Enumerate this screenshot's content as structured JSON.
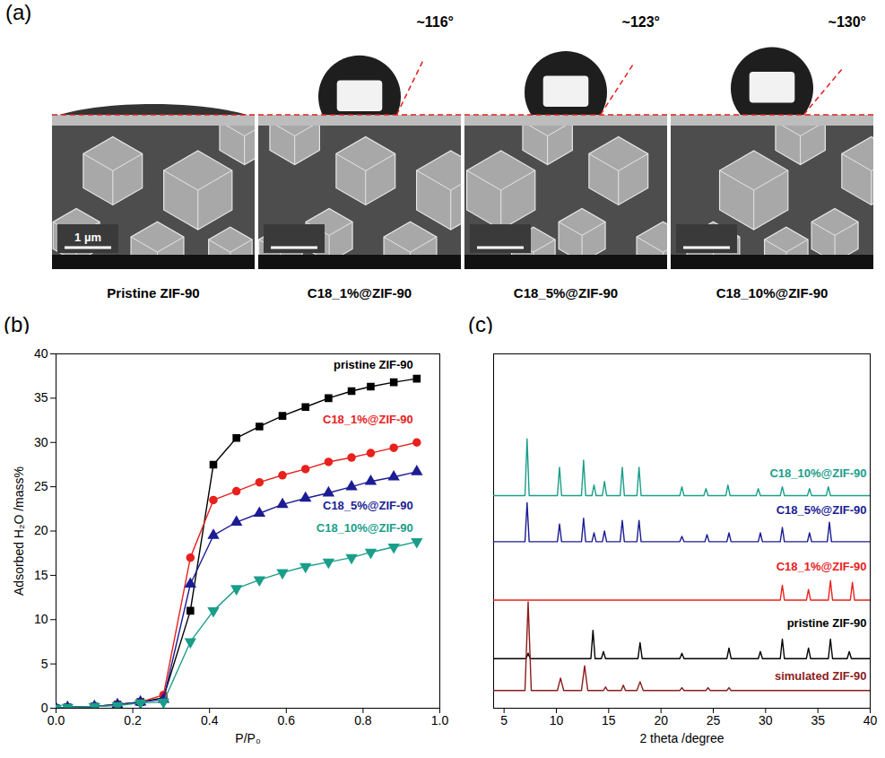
{
  "panel_a": {
    "label": "(a)",
    "scale_bar": "1 µm",
    "samples": [
      {
        "name": "Pristine ZIF-90",
        "contact_angle": null
      },
      {
        "name": "C18_1%@ZIF-90",
        "contact_angle": 116,
        "angle_label": "~116°"
      },
      {
        "name": "C18_5%@ZIF-90",
        "contact_angle": 123,
        "angle_label": "~123°"
      },
      {
        "name": "C18_10%@ZIF-90",
        "contact_angle": 130,
        "angle_label": "~130°"
      }
    ]
  },
  "chart_data": [
    {
      "type": "line",
      "label": "(b)",
      "xlabel": "P/P₀",
      "ylabel": "Adsorbed H₂O /mass%",
      "x": [
        0,
        0.03,
        0.1,
        0.16,
        0.22,
        0.28,
        0.35,
        0.41,
        0.47,
        0.53,
        0.59,
        0.65,
        0.71,
        0.77,
        0.82,
        0.88,
        0.94
      ],
      "xlim": [
        0,
        1
      ],
      "xticks": [
        {
          "value": 0,
          "label": "0.0"
        },
        {
          "value": 0.2,
          "label": "0.2"
        },
        {
          "value": 0.4,
          "label": "0.4"
        },
        {
          "value": 0.6,
          "label": "0.6"
        },
        {
          "value": 0.8,
          "label": "0.8"
        },
        {
          "value": 1,
          "label": "1.0"
        }
      ],
      "ylim": [
        0,
        40
      ],
      "yticks": [
        0,
        5,
        10,
        15,
        20,
        25,
        30,
        35,
        40
      ],
      "grid": false,
      "series": [
        {
          "name": "pristine ZIF-90",
          "color": "#000000",
          "marker": "square",
          "values": [
            0,
            0.1,
            0.2,
            0.4,
            0.7,
            1.2,
            11,
            27.5,
            30.5,
            31.8,
            33,
            34,
            35,
            35.8,
            36.3,
            36.8,
            37.2
          ]
        },
        {
          "name": "C18_1%@ZIF-90",
          "color": "#e8211d",
          "marker": "circle",
          "values": [
            0,
            0.1,
            0.2,
            0.4,
            0.7,
            1.5,
            17,
            23.5,
            24.5,
            25.5,
            26.3,
            27,
            27.8,
            28.3,
            28.8,
            29.4,
            30
          ]
        },
        {
          "name": "C18_5%@ZIF-90",
          "color": "#1c1c94",
          "marker": "triangle-up",
          "values": [
            0,
            0.1,
            0.2,
            0.4,
            0.7,
            1,
            14,
            19.5,
            21,
            22,
            23,
            23.7,
            24.3,
            25,
            25.6,
            26.1,
            26.7
          ]
        },
        {
          "name": "C18_10%@ZIF-90",
          "color": "#1a9e8a",
          "marker": "triangle-down",
          "values": [
            0,
            0.1,
            0.2,
            0.3,
            0.6,
            0.7,
            7.5,
            11,
            13.5,
            14.5,
            15.3,
            16,
            16.5,
            17,
            17.6,
            18.2,
            18.8
          ]
        }
      ]
    },
    {
      "type": "line",
      "label": "(c)",
      "xlabel": "2 theta /degree",
      "xlim": [
        4,
        40
      ],
      "xticks": [
        5,
        10,
        15,
        20,
        25,
        30,
        35,
        40
      ],
      "ylim": [
        0,
        100
      ],
      "tick_labels": "x",
      "grid": false,
      "series": [
        {
          "name": "C18_10%@ZIF-90",
          "color": "#1a9e8a",
          "x": [
            4,
            7.0,
            7.2,
            7.4,
            10.1,
            10.3,
            10.5,
            12.4,
            12.6,
            12.8,
            13.4,
            13.6,
            13.8,
            14.4,
            14.6,
            14.8,
            16.1,
            16.3,
            16.5,
            17.7,
            17.9,
            18.1,
            21.8,
            22.0,
            22.2,
            24.1,
            24.3,
            24.5,
            26.2,
            26.4,
            26.6,
            29.1,
            29.3,
            29.5,
            31.4,
            31.6,
            31.8,
            34.0,
            34.2,
            34.4,
            35.8,
            36.0,
            36.2,
            40
          ],
          "values": [
            60,
            60,
            76,
            60,
            60,
            68,
            60,
            60,
            70,
            60,
            60,
            63,
            60,
            60,
            64,
            60,
            60,
            68,
            60,
            60,
            68,
            60,
            60,
            62.5,
            60,
            60,
            62,
            60,
            60,
            63,
            60,
            60,
            62,
            60,
            60,
            62.5,
            60,
            60,
            62,
            60,
            60,
            62.5,
            60,
            60
          ]
        },
        {
          "name": "C18_5%@ZIF-90",
          "color": "#1c1c94",
          "x": [
            4,
            7.0,
            7.2,
            7.4,
            10.1,
            10.3,
            10.5,
            12.4,
            12.6,
            12.8,
            13.4,
            13.6,
            13.8,
            14.4,
            14.6,
            14.8,
            16.1,
            16.3,
            16.5,
            17.7,
            17.9,
            18.1,
            21.8,
            22.0,
            22.2,
            24.2,
            24.4,
            24.6,
            26.3,
            26.5,
            26.7,
            29.3,
            29.5,
            29.7,
            31.4,
            31.6,
            31.8,
            34.0,
            34.2,
            34.4,
            35.9,
            36.1,
            36.3,
            40
          ],
          "values": [
            47,
            47,
            58,
            47,
            47,
            52,
            47,
            47,
            53.6,
            47,
            47,
            49.5,
            47,
            47,
            50,
            47,
            47,
            53,
            47,
            47,
            53,
            47,
            47,
            48.5,
            47,
            47,
            49,
            47,
            47,
            49.5,
            47,
            47,
            49.5,
            47,
            47,
            51,
            47,
            47,
            49.5,
            47,
            47,
            52.5,
            47,
            47
          ]
        },
        {
          "name": "C18_1%@ZIF-90",
          "color": "#e8211d",
          "x": [
            4,
            31.4,
            31.6,
            31.8,
            33.9,
            34.1,
            34.3,
            36.0,
            36.2,
            36.4,
            38.1,
            38.3,
            38.5,
            40
          ],
          "values": [
            30.5,
            30.5,
            34.7,
            30.5,
            30.5,
            33.5,
            30.5,
            30.5,
            36,
            30.5,
            30.5,
            35.5,
            30.5,
            30.5
          ]
        },
        {
          "name": "pristine ZIF-90",
          "color": "#000000",
          "x": [
            4,
            7.1,
            7.3,
            7.5,
            13.3,
            13.5,
            13.7,
            14.3,
            14.5,
            14.7,
            17.8,
            18.0,
            18.2,
            21.8,
            22.0,
            22.2,
            26.3,
            26.5,
            26.7,
            29.3,
            29.5,
            29.7,
            31.4,
            31.6,
            31.8,
            33.9,
            34.1,
            34.3,
            36.0,
            36.2,
            36.4,
            37.8,
            38.0,
            38.2,
            40
          ],
          "values": [
            14,
            14,
            15.5,
            14,
            14,
            22,
            14,
            14,
            16,
            14,
            14,
            18.5,
            14,
            14,
            15.5,
            14,
            14,
            17,
            14,
            14,
            16,
            14,
            14,
            19.5,
            14,
            14,
            17,
            14,
            14,
            19.5,
            14,
            14,
            16,
            14,
            14
          ]
        },
        {
          "name": "simulated ZIF-90",
          "color": "#8b1c1c",
          "x": [
            4,
            7.0,
            7.3,
            7.6,
            10.1,
            10.4,
            10.7,
            12.4,
            12.7,
            13.0,
            14.5,
            14.7,
            14.9,
            16.2,
            16.4,
            16.6,
            17.7,
            18.0,
            18.3,
            21.8,
            22.0,
            22.2,
            24.3,
            24.5,
            24.7,
            26.3,
            26.5,
            26.7,
            40
          ],
          "values": [
            5,
            5,
            30,
            5,
            5,
            8.5,
            5,
            5,
            12,
            5,
            5,
            6,
            5,
            5,
            6.5,
            5,
            5,
            7.5,
            5,
            5,
            5.8,
            5,
            5,
            5.8,
            5,
            5,
            5.8,
            5,
            5
          ]
        }
      ]
    }
  ]
}
